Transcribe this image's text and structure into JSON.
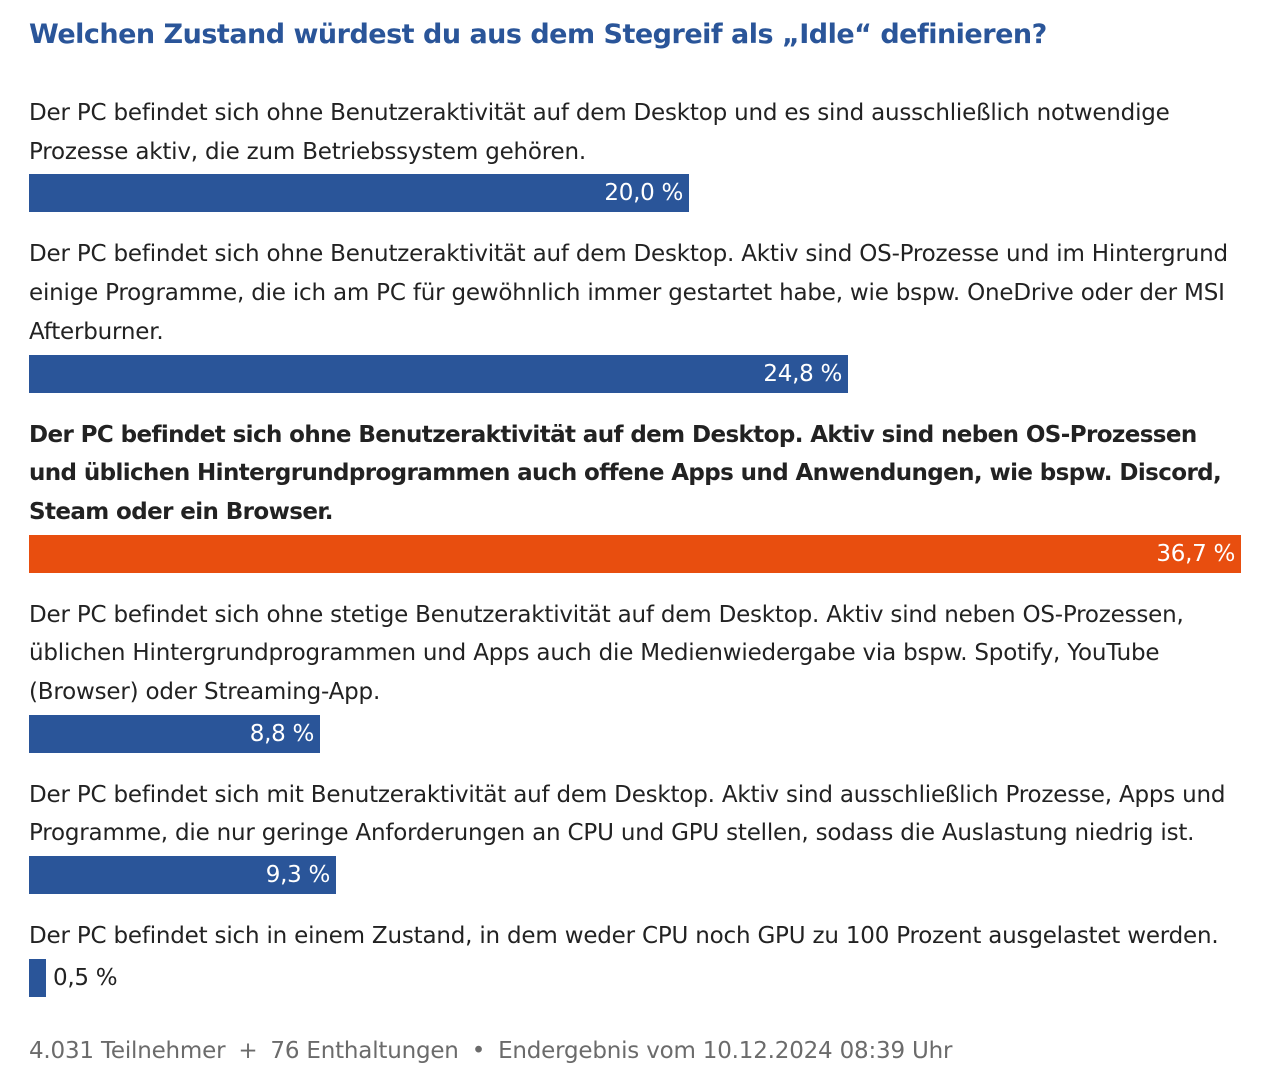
{
  "chart_data": {
    "type": "bar",
    "orientation": "horizontal",
    "title": "Welchen Zustand würdest du aus dem Stegreif als „Idle“ definieren?",
    "categories": [
      "Der PC befindet sich ohne Benutzeraktivität auf dem Desktop und es sind ausschließlich notwendige Prozesse aktiv, die zum Betriebssystem gehören.",
      "Der PC befindet sich ohne Benutzeraktivität auf dem Desktop. Aktiv sind OS-Prozesse und im Hintergrund einige Programme, die ich am PC für gewöhnlich immer gestartet habe, wie bspw. OneDrive oder der MSI Afterburner.",
      "Der PC befindet sich ohne Benutzeraktivität auf dem Desktop. Aktiv sind neben OS-Prozessen und üblichen Hintergrundprogrammen auch offene Apps und Anwendungen, wie bspw. Discord, Steam oder ein Browser.",
      "Der PC befindet sich ohne stetige Benutzeraktivität auf dem Desktop. Aktiv sind neben OS-Prozessen, üblichen Hintergrundprogrammen und Apps auch die Medienwiedergabe via bspw. Spotify, YouTube (Browser) oder Streaming-App.",
      "Der PC befindet sich mit Benutzeraktivität auf dem Desktop. Aktiv sind ausschließlich Prozesse, Apps und Programme, die nur geringe Anforderungen an CPU und GPU stellen, sodass die Auslastung niedrig ist.",
      "Der PC befindet sich in einem Zustand, in dem weder CPU noch GPU zu 100 Prozent ausgelastet werden."
    ],
    "values": [
      20.0,
      24.8,
      36.7,
      8.8,
      9.3,
      0.5
    ],
    "value_labels": [
      "20,0 %",
      "24,8 %",
      "36,7 %",
      "8,8 %",
      "9,3 %",
      "0,5 %"
    ],
    "winner_index": 2,
    "unit": "%",
    "xlim": [
      0,
      36.7
    ]
  },
  "colors": {
    "bar": "#2a5599",
    "winner_bar": "#e84e0f",
    "title": "#2a5599"
  },
  "footer": {
    "participants": "4.031 Teilnehmer",
    "sep1": "+",
    "abstentions": "76 Enthaltungen",
    "sep2": "•",
    "result": "Endergebnis vom 10.12.2024 08:39 Uhr"
  }
}
